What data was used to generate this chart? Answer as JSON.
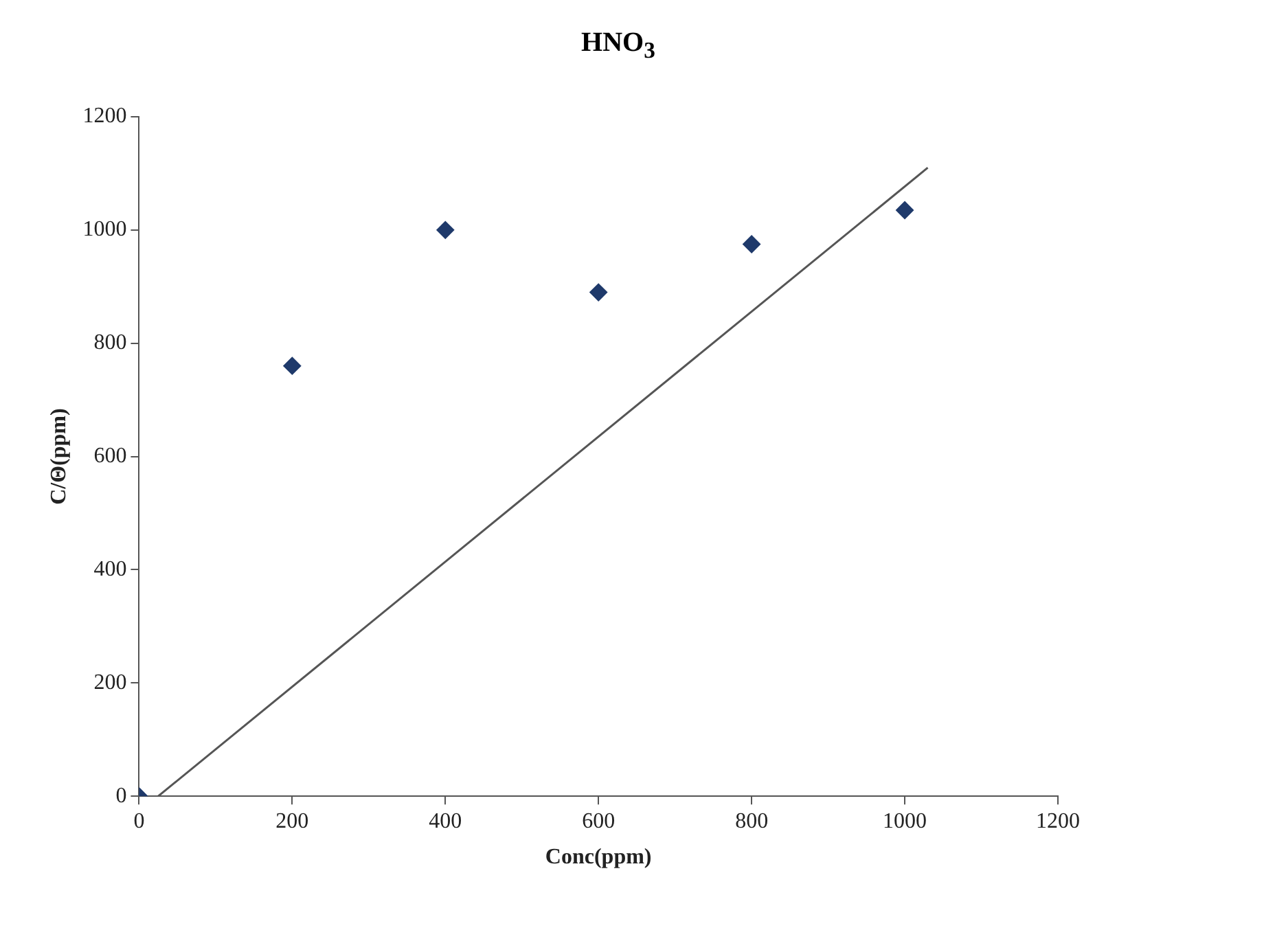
{
  "chart_data": {
    "type": "scatter",
    "title": "HNO$_{3}$",
    "xlabel": "Conc(ppm)",
    "ylabel": "C/Θ(ppm)",
    "xlim": [
      0,
      1200
    ],
    "xticks": [
      0,
      200,
      400,
      600,
      800,
      1000,
      1200
    ],
    "ylim": [
      0,
      1200
    ],
    "yticks": [
      0,
      200,
      400,
      600,
      800,
      1000,
      1200
    ],
    "grid": false,
    "legend": false,
    "series": [
      {
        "type": "scatter",
        "marker": "diamond",
        "color": "#1f3a6b",
        "x": [
          0,
          200,
          400,
          600,
          800,
          1000
        ],
        "values": [
          0,
          760,
          1000,
          890,
          975,
          1035
        ]
      },
      {
        "type": "line",
        "color": "#555555",
        "x": [
          25,
          1030
        ],
        "values": [
          0,
          1110
        ]
      }
    ]
  }
}
